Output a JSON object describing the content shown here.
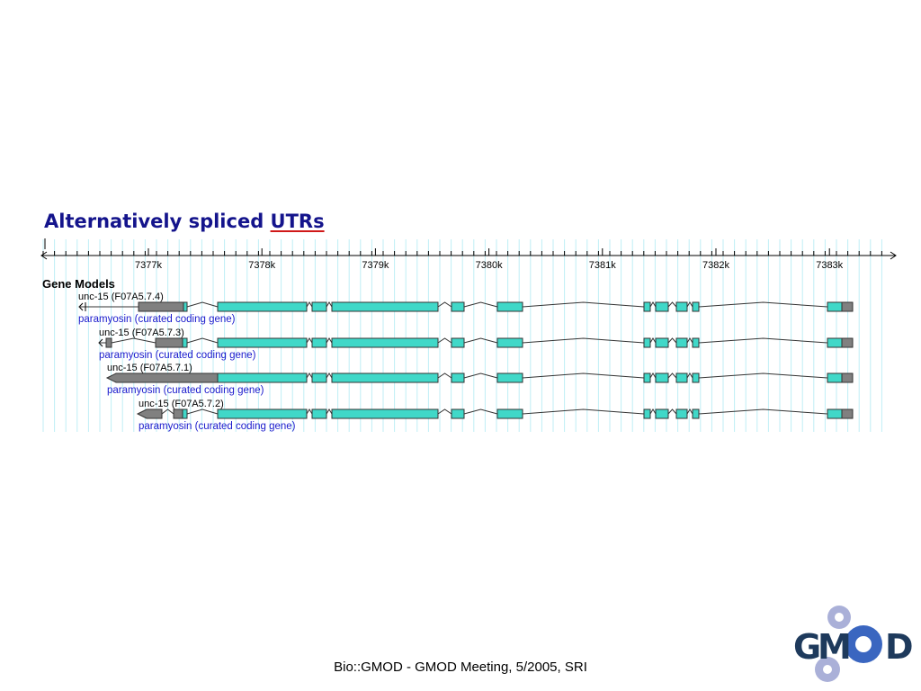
{
  "slide": {
    "title_prefix": "Alternatively spliced ",
    "title_underlined": "UTRs",
    "footer": "Bio::GMOD - GMOD Meeting, 5/2005, SRI"
  },
  "ruler": {
    "ticks": [
      "7377k",
      "7378k",
      "7379k",
      "7380k",
      "7381k",
      "7382k",
      "7383k"
    ]
  },
  "track": {
    "name": "Gene Models",
    "transcripts": [
      {
        "name": "unc-15 (F07A5.7.4)",
        "description": "paramyosin (curated coding gene)"
      },
      {
        "name": "unc-15 (F07A5.7.3)",
        "description": "paramyosin (curated coding gene)"
      },
      {
        "name": "unc-15 (F07A5.7.1)",
        "description": "paramyosin (curated coding gene)"
      },
      {
        "name": "unc-15 (F07A5.7.2)",
        "description": "paramyosin (curated coding gene)"
      }
    ]
  },
  "colors": {
    "title": "#14148c",
    "title_underline": "#d01818",
    "cds": "#40d8c8",
    "utr": "#808080",
    "description": "#1a1acc",
    "grid": "#bfeef6",
    "logo_gear": "#aab0d8",
    "logo_text": "#1e3a5c"
  },
  "logo": {
    "letters": [
      "G",
      "M",
      "D"
    ]
  }
}
